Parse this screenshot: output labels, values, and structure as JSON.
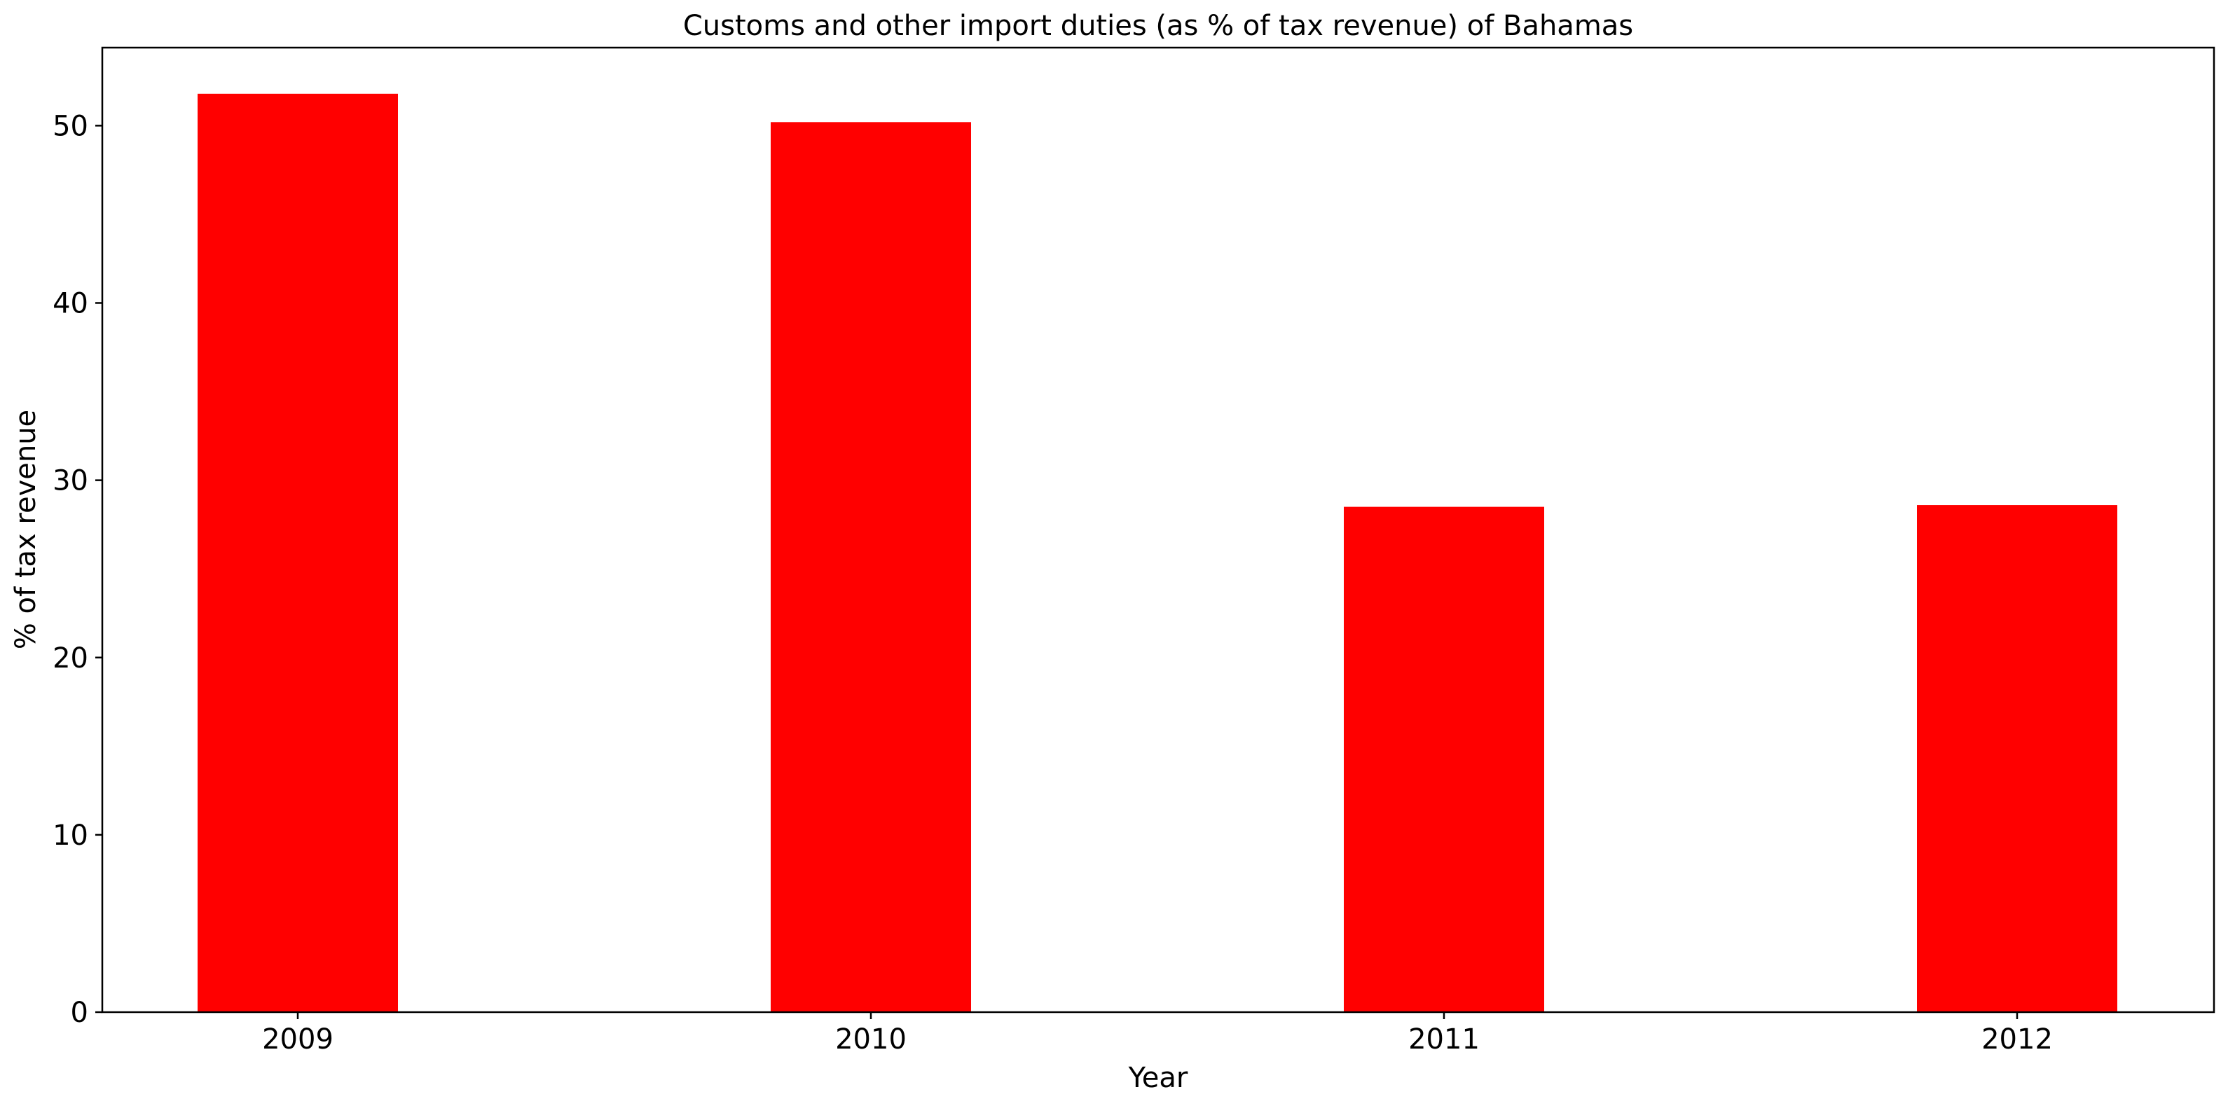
{
  "chart_data": {
    "type": "bar",
    "title": "Customs and other import duties (as % of tax revenue) of Bahamas",
    "xlabel": "Year",
    "ylabel": "% of tax revenue",
    "categories": [
      "2009",
      "2010",
      "2011",
      "2012"
    ],
    "values": [
      51.8,
      50.2,
      28.5,
      28.6
    ],
    "ylim": [
      0,
      54.4
    ],
    "yticks": [
      0,
      10,
      20,
      30,
      40,
      50
    ],
    "grid": false,
    "bar_color": "#ff0000"
  }
}
